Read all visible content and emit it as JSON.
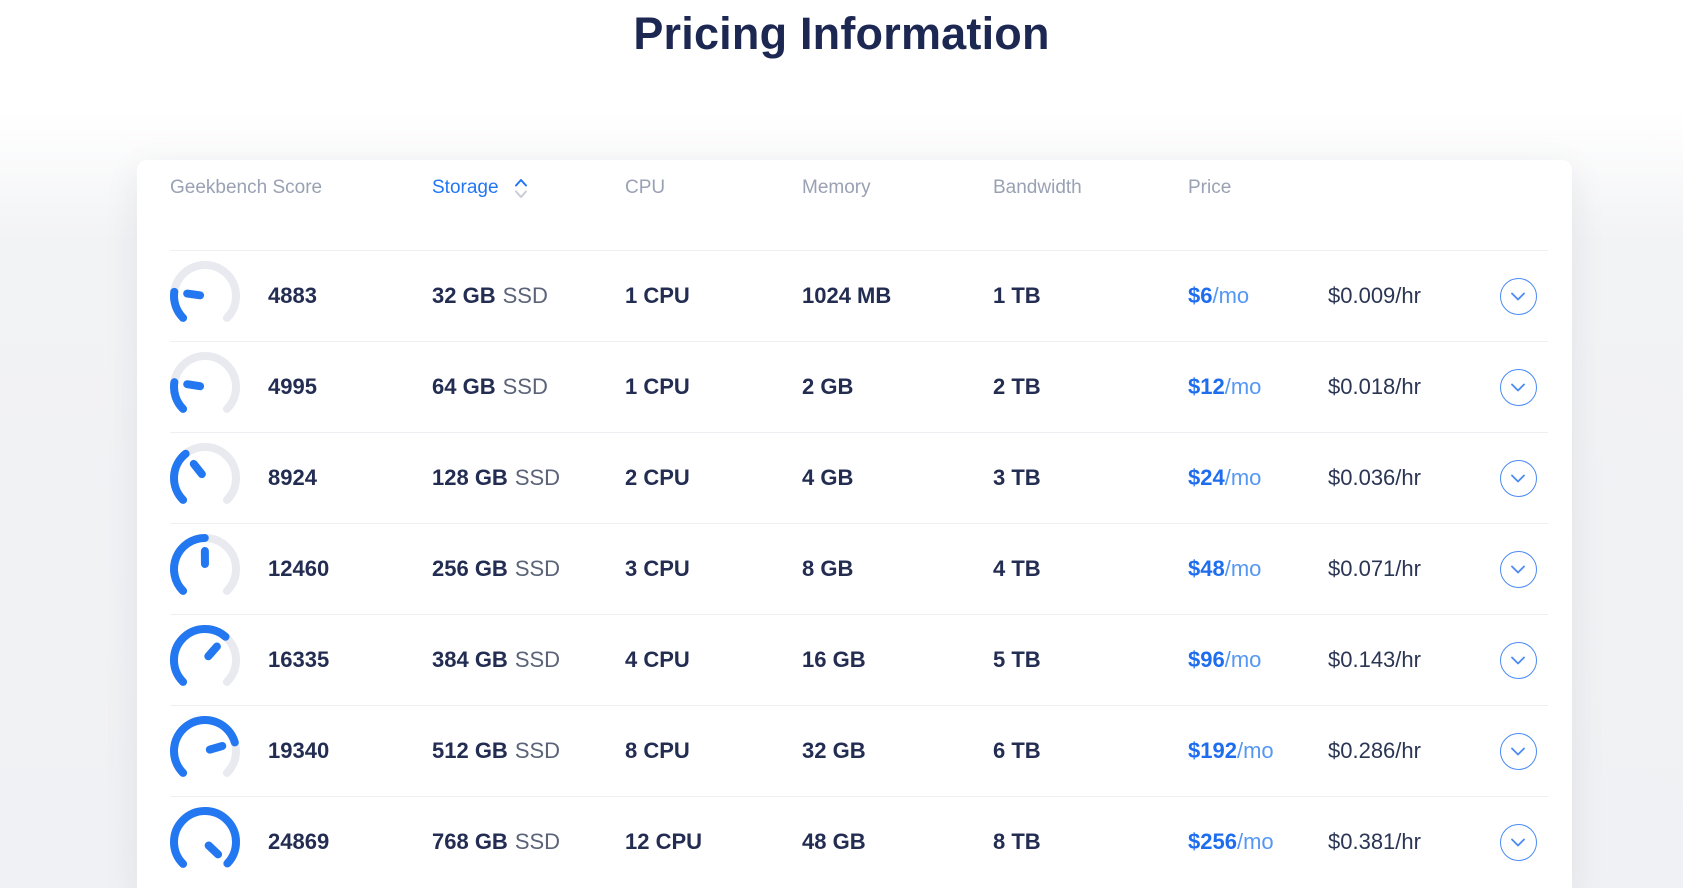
{
  "page": {
    "title": "Pricing Information"
  },
  "table": {
    "headers": {
      "geekbench": "Geekbench Score",
      "storage": "Storage",
      "cpu": "CPU",
      "memory": "Memory",
      "bandwidth": "Bandwidth",
      "price": "Price"
    },
    "sort": {
      "column": "Storage",
      "active_direction": "asc"
    },
    "rows": [
      {
        "geekbench_score": 4883,
        "storage": "32 GB",
        "storage_type": "SSD",
        "cpu": "1 CPU",
        "memory": "1024 MB",
        "bandwidth": "1 TB",
        "price_monthly": "$6",
        "price_monthly_suffix": "/mo",
        "price_hourly": "$0.009/hr"
      },
      {
        "geekbench_score": 4995,
        "storage": "64 GB",
        "storage_type": "SSD",
        "cpu": "1 CPU",
        "memory": "2 GB",
        "bandwidth": "2 TB",
        "price_monthly": "$12",
        "price_monthly_suffix": "/mo",
        "price_hourly": "$0.018/hr"
      },
      {
        "geekbench_score": 8924,
        "storage": "128 GB",
        "storage_type": "SSD",
        "cpu": "2 CPU",
        "memory": "4 GB",
        "bandwidth": "3 TB",
        "price_monthly": "$24",
        "price_monthly_suffix": "/mo",
        "price_hourly": "$0.036/hr"
      },
      {
        "geekbench_score": 12460,
        "storage": "256 GB",
        "storage_type": "SSD",
        "cpu": "3 CPU",
        "memory": "8 GB",
        "bandwidth": "4 TB",
        "price_monthly": "$48",
        "price_monthly_suffix": "/mo",
        "price_hourly": "$0.071/hr"
      },
      {
        "geekbench_score": 16335,
        "storage": "384 GB",
        "storage_type": "SSD",
        "cpu": "4 CPU",
        "memory": "16 GB",
        "bandwidth": "5 TB",
        "price_monthly": "$96",
        "price_monthly_suffix": "/mo",
        "price_hourly": "$0.143/hr"
      },
      {
        "geekbench_score": 19340,
        "storage": "512 GB",
        "storage_type": "SSD",
        "cpu": "8 CPU",
        "memory": "32 GB",
        "bandwidth": "6 TB",
        "price_monthly": "$192",
        "price_monthly_suffix": "/mo",
        "price_hourly": "$0.286/hr"
      },
      {
        "geekbench_score": 24869,
        "storage": "768 GB",
        "storage_type": "SSD",
        "cpu": "12 CPU",
        "memory": "48 GB",
        "bandwidth": "8 TB",
        "price_monthly": "$256",
        "price_monthly_suffix": "/mo",
        "price_hourly": "$0.381/hr"
      }
    ]
  },
  "gauge": {
    "max_score": 25000,
    "start_angle_deg": 135,
    "sweep_deg": 270
  },
  "colors": {
    "accent_blue": "#2377f0",
    "accent_blue_light": "#5597f4",
    "navy_text": "#232d52",
    "title_navy": "#1c2752",
    "header_gray": "#99a1b3",
    "gauge_track": "#e8eaef",
    "row_separator": "#edeff3",
    "page_shade": "#f1f2f5",
    "card_bg": "#ffffff"
  }
}
